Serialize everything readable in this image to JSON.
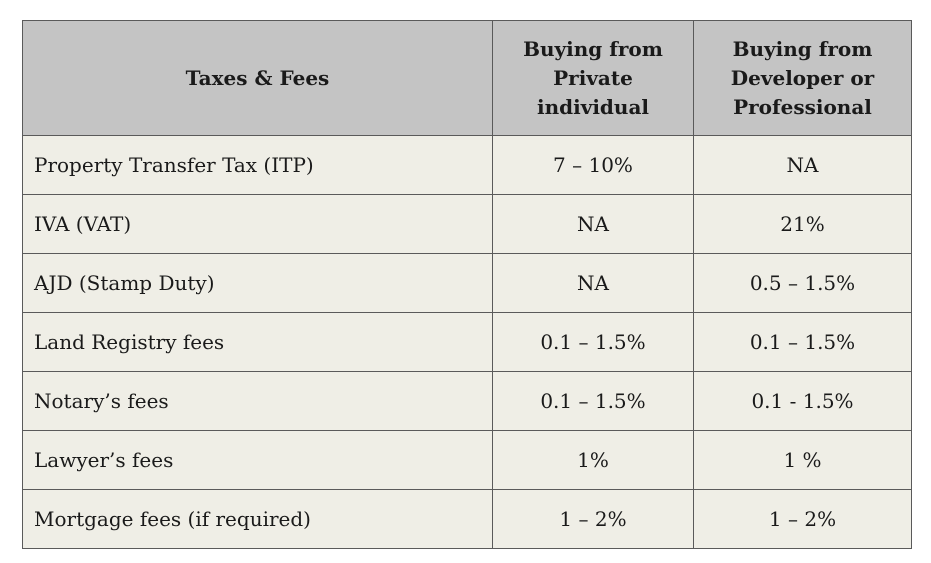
{
  "table": {
    "headers": [
      "Taxes & Fees",
      "Buying from Private individual",
      "Buying from Developer or Professional"
    ],
    "rows": [
      [
        "Property Transfer Tax (ITP)",
        "7 – 10%",
        "NA"
      ],
      [
        "IVA (VAT)",
        "NA",
        "21%"
      ],
      [
        "AJD (Stamp Duty)",
        "NA",
        "0.5 – 1.5%"
      ],
      [
        "Land Registry fees",
        "0.1 – 1.5%",
        "0.1 – 1.5%"
      ],
      [
        "Notary’s fees",
        "0.1 – 1.5%",
        "0.1 - 1.5%"
      ],
      [
        "Lawyer’s fees",
        "1%",
        "1 %"
      ],
      [
        "Mortgage fees (if required)",
        "1 – 2%",
        "1 – 2%"
      ]
    ]
  }
}
